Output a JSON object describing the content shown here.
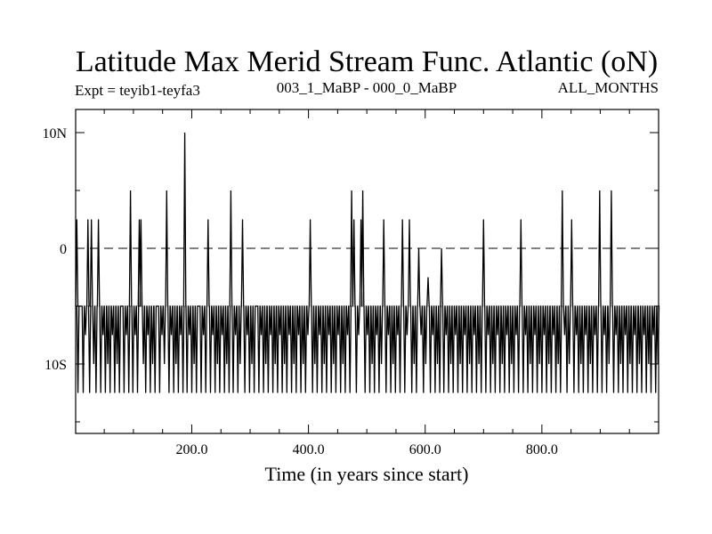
{
  "chart_data": {
    "type": "line",
    "title": "Latitude Max Merid Stream Func. Atlantic (oN)",
    "subtitle_left": "Expt = teyib1-teyfa3",
    "subtitle_center": "003_1_MaBP - 000_0_MaBP",
    "subtitle_right": "ALL_MONTHS",
    "xlabel": "Time (in years since start)",
    "ylabel": "",
    "xlim": [
      1,
      1000
    ],
    "ylim": [
      -16,
      12
    ],
    "x_ticks": [
      {
        "value": 200,
        "label": "200.0"
      },
      {
        "value": 400,
        "label": "400.0"
      },
      {
        "value": 600,
        "label": "600.0"
      },
      {
        "value": 800,
        "label": "800.0"
      }
    ],
    "y_ticks": [
      {
        "value": 10,
        "label": "10N"
      },
      {
        "value": 0,
        "label": "0"
      },
      {
        "value": -10,
        "label": "10S"
      }
    ],
    "reference_line": {
      "value": 0,
      "style": "dashed"
    },
    "baseline": -5,
    "series": [
      {
        "name": "latitude_max",
        "spikes": [
          [
            3,
            2.5
          ],
          [
            5,
            -12.5
          ],
          [
            10,
            -5
          ],
          [
            14,
            -12.5
          ],
          [
            18,
            -7.5
          ],
          [
            22,
            2.5
          ],
          [
            25,
            -12.5
          ],
          [
            28,
            2.5
          ],
          [
            32,
            -10
          ],
          [
            36,
            -12.5
          ],
          [
            40,
            2.5
          ],
          [
            44,
            -12.5
          ],
          [
            48,
            -7.5
          ],
          [
            52,
            -12.5
          ],
          [
            56,
            -10
          ],
          [
            60,
            -12.5
          ],
          [
            64,
            -7.5
          ],
          [
            68,
            -12.5
          ],
          [
            72,
            -10
          ],
          [
            76,
            -12.5
          ],
          [
            80,
            -5
          ],
          [
            84,
            -12.5
          ],
          [
            88,
            -7.5
          ],
          [
            92,
            -12.5
          ],
          [
            95,
            5
          ],
          [
            99,
            -12.5
          ],
          [
            103,
            -7.5
          ],
          [
            107,
            -12.5
          ],
          [
            110,
            2.5
          ],
          [
            113,
            2.5
          ],
          [
            117,
            -10
          ],
          [
            121,
            -12.5
          ],
          [
            125,
            -7.5
          ],
          [
            129,
            -12.5
          ],
          [
            133,
            -10
          ],
          [
            137,
            -12.5
          ],
          [
            141,
            -5
          ],
          [
            145,
            -12.5
          ],
          [
            149,
            -7.5
          ],
          [
            153,
            -10
          ],
          [
            157,
            5
          ],
          [
            161,
            -12.5
          ],
          [
            165,
            -7.5
          ],
          [
            169,
            -12.5
          ],
          [
            173,
            -10
          ],
          [
            177,
            -12.5
          ],
          [
            181,
            -7.5
          ],
          [
            185,
            -12.5
          ],
          [
            188,
            10
          ],
          [
            192,
            -12.5
          ],
          [
            196,
            -7.5
          ],
          [
            200,
            -12.5
          ],
          [
            204,
            -10
          ],
          [
            208,
            -12.5
          ],
          [
            212,
            -5
          ],
          [
            216,
            -12.5
          ],
          [
            220,
            -7.5
          ],
          [
            224,
            -12.5
          ],
          [
            228,
            2.5
          ],
          [
            232,
            -12.5
          ],
          [
            236,
            -7.5
          ],
          [
            240,
            -12.5
          ],
          [
            244,
            -10
          ],
          [
            248,
            -12.5
          ],
          [
            252,
            -7.5
          ],
          [
            256,
            -12.5
          ],
          [
            260,
            -10
          ],
          [
            264,
            -12.5
          ],
          [
            267,
            5
          ],
          [
            271,
            -12.5
          ],
          [
            275,
            -7.5
          ],
          [
            279,
            -12.5
          ],
          [
            283,
            -10
          ],
          [
            287,
            2.5
          ],
          [
            291,
            -12.5
          ],
          [
            295,
            -7.5
          ],
          [
            299,
            -12.5
          ],
          [
            303,
            -10
          ],
          [
            307,
            -12.5
          ],
          [
            311,
            -5
          ],
          [
            315,
            -12.5
          ],
          [
            319,
            -7.5
          ],
          [
            323,
            -12.5
          ],
          [
            327,
            -10
          ],
          [
            331,
            -12.5
          ],
          [
            335,
            -7.5
          ],
          [
            339,
            -12.5
          ],
          [
            343,
            -10
          ],
          [
            347,
            -12.5
          ],
          [
            351,
            -7.5
          ],
          [
            355,
            -12.5
          ],
          [
            359,
            -10
          ],
          [
            363,
            -12.5
          ],
          [
            367,
            -7.5
          ],
          [
            371,
            -12.5
          ],
          [
            375,
            -10
          ],
          [
            379,
            -12.5
          ],
          [
            383,
            -7.5
          ],
          [
            387,
            -12.5
          ],
          [
            391,
            -10
          ],
          [
            395,
            -12.5
          ],
          [
            399,
            -7.5
          ],
          [
            403,
            2.5
          ],
          [
            407,
            -12.5
          ],
          [
            411,
            -10
          ],
          [
            415,
            -12.5
          ],
          [
            419,
            -7.5
          ],
          [
            423,
            -12.5
          ],
          [
            427,
            -10
          ],
          [
            431,
            -12.5
          ],
          [
            435,
            -7.5
          ],
          [
            439,
            -12.5
          ],
          [
            443,
            -10
          ],
          [
            447,
            -12.5
          ],
          [
            451,
            -7.5
          ],
          [
            455,
            -12.5
          ],
          [
            459,
            -10
          ],
          [
            463,
            -12.5
          ],
          [
            467,
            -7.5
          ],
          [
            471,
            -12.5
          ],
          [
            474,
            5
          ],
          [
            478,
            2.5
          ],
          [
            482,
            -12.5
          ],
          [
            486,
            -7.5
          ],
          [
            490,
            2.5
          ],
          [
            493,
            5
          ],
          [
            497,
            -12.5
          ],
          [
            501,
            -7.5
          ],
          [
            505,
            -12.5
          ],
          [
            509,
            -10
          ],
          [
            513,
            -12.5
          ],
          [
            517,
            -7.5
          ],
          [
            521,
            -12.5
          ],
          [
            525,
            -10
          ],
          [
            529,
            2.5
          ],
          [
            533,
            -12.5
          ],
          [
            537,
            -7.5
          ],
          [
            541,
            -12.5
          ],
          [
            545,
            -10
          ],
          [
            549,
            -12.5
          ],
          [
            553,
            -7.5
          ],
          [
            557,
            -12.5
          ],
          [
            561,
            2.5
          ],
          [
            565,
            -12.5
          ],
          [
            569,
            -7.5
          ],
          [
            573,
            2.5
          ],
          [
            577,
            -12.5
          ],
          [
            581,
            -10
          ],
          [
            585,
            -12.5
          ],
          [
            589,
            0
          ],
          [
            593,
            -7.5
          ],
          [
            597,
            -12.5
          ],
          [
            601,
            -10
          ],
          [
            605,
            -2.5
          ],
          [
            609,
            -12.5
          ],
          [
            613,
            -7.5
          ],
          [
            617,
            -12.5
          ],
          [
            621,
            -10
          ],
          [
            625,
            -12.5
          ],
          [
            628,
            0
          ],
          [
            632,
            -12.5
          ],
          [
            636,
            -7.5
          ],
          [
            640,
            -12.5
          ],
          [
            644,
            -10
          ],
          [
            648,
            -12.5
          ],
          [
            652,
            -7.5
          ],
          [
            656,
            -12.5
          ],
          [
            660,
            -10
          ],
          [
            664,
            -12.5
          ],
          [
            668,
            -7.5
          ],
          [
            672,
            -12.5
          ],
          [
            676,
            -10
          ],
          [
            680,
            -12.5
          ],
          [
            684,
            -7.5
          ],
          [
            688,
            -12.5
          ],
          [
            692,
            -10
          ],
          [
            696,
            -12.5
          ],
          [
            700,
            2.5
          ],
          [
            704,
            -12.5
          ],
          [
            708,
            -7.5
          ],
          [
            712,
            -12.5
          ],
          [
            716,
            -10
          ],
          [
            720,
            -12.5
          ],
          [
            724,
            -7.5
          ],
          [
            728,
            -12.5
          ],
          [
            732,
            -10
          ],
          [
            736,
            -12.5
          ],
          [
            740,
            -7.5
          ],
          [
            744,
            -12.5
          ],
          [
            748,
            -10
          ],
          [
            752,
            -12.5
          ],
          [
            756,
            -7.5
          ],
          [
            760,
            -12.5
          ],
          [
            764,
            2.5
          ],
          [
            768,
            -12.5
          ],
          [
            772,
            -7.5
          ],
          [
            776,
            -12.5
          ],
          [
            780,
            -10
          ],
          [
            784,
            -12.5
          ],
          [
            788,
            -7.5
          ],
          [
            792,
            -12.5
          ],
          [
            796,
            -10
          ],
          [
            800,
            -12.5
          ],
          [
            804,
            -7.5
          ],
          [
            808,
            -12.5
          ],
          [
            812,
            -10
          ],
          [
            816,
            -12.5
          ],
          [
            820,
            -7.5
          ],
          [
            824,
            -12.5
          ],
          [
            828,
            -10
          ],
          [
            832,
            -12.5
          ],
          [
            835,
            5
          ],
          [
            839,
            -7.5
          ],
          [
            843,
            -12.5
          ],
          [
            847,
            -10
          ],
          [
            851,
            2.5
          ],
          [
            855,
            -12.5
          ],
          [
            859,
            -7.5
          ],
          [
            863,
            -12.5
          ],
          [
            867,
            -10
          ],
          [
            871,
            -12.5
          ],
          [
            875,
            -7.5
          ],
          [
            879,
            -12.5
          ],
          [
            883,
            -10
          ],
          [
            887,
            -12.5
          ],
          [
            891,
            -7.5
          ],
          [
            895,
            -12.5
          ],
          [
            899,
            5
          ],
          [
            903,
            -12.5
          ],
          [
            907,
            -7.5
          ],
          [
            911,
            -12.5
          ],
          [
            915,
            -10
          ],
          [
            919,
            5
          ],
          [
            923,
            -12.5
          ],
          [
            927,
            -7.5
          ],
          [
            931,
            -12.5
          ],
          [
            935,
            -10
          ],
          [
            939,
            -12.5
          ],
          [
            943,
            -7.5
          ],
          [
            947,
            -12.5
          ],
          [
            951,
            -10
          ],
          [
            955,
            -12.5
          ],
          [
            959,
            -7.5
          ],
          [
            963,
            -12.5
          ],
          [
            967,
            -10
          ],
          [
            971,
            -12.5
          ],
          [
            975,
            -7.5
          ],
          [
            979,
            -12.5
          ],
          [
            983,
            -10
          ],
          [
            987,
            -12.5
          ],
          [
            991,
            -7.5
          ],
          [
            995,
            -12.5
          ],
          [
            999,
            -10
          ]
        ]
      }
    ]
  }
}
